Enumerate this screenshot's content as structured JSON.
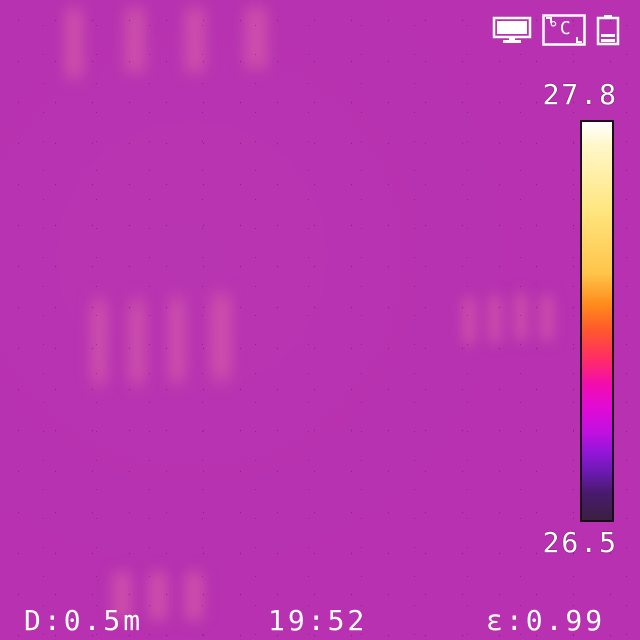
{
  "status_bar": {
    "icons": [
      "monitor-icon",
      "celsius-unit-icon",
      "battery-icon"
    ],
    "unit_symbol": "°C"
  },
  "scale": {
    "max_temp": "27.8",
    "min_temp": "26.5",
    "colors": {
      "hot": "#ffffff",
      "warm": "#ffc44a",
      "mid": "#ff2a6a",
      "cool": "#c010e0",
      "cold": "#3a2040"
    }
  },
  "readouts": {
    "distance": "D:0.5m",
    "time": "19:52",
    "emissivity": "ε:0.99"
  },
  "colors": {
    "background": "#b731b0",
    "text": "#ffffff"
  }
}
